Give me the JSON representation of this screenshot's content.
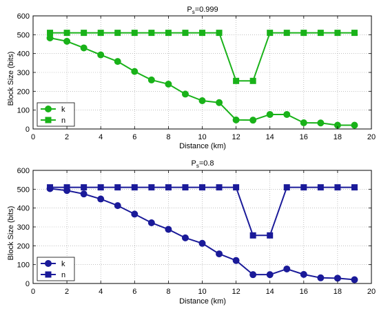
{
  "chart_data": [
    {
      "type": "line",
      "title_main": "P",
      "title_sub": "s",
      "title_rest": "=0.999",
      "xlabel": "Distance (km)",
      "ylabel": "Block Size (bits)",
      "xlim": [
        0,
        20
      ],
      "ylim": [
        0,
        600
      ],
      "xticks": [
        "0",
        "2",
        "4",
        "6",
        "8",
        "10",
        "12",
        "14",
        "16",
        "18",
        "20"
      ],
      "yticks": [
        "0",
        "100",
        "200",
        "300",
        "400",
        "500",
        "600"
      ],
      "grid": true,
      "legend_placement": "bottom-left",
      "color": "#19b219",
      "x": [
        1,
        2,
        3,
        4,
        5,
        6,
        7,
        8,
        9,
        10,
        11,
        12,
        13,
        14,
        15,
        16,
        17,
        18,
        19
      ],
      "series": [
        {
          "name": "k",
          "marker": "circle",
          "values": [
            483,
            465,
            430,
            393,
            358,
            305,
            260,
            238,
            185,
            150,
            140,
            48,
            47,
            77,
            77,
            33,
            32,
            20,
            20
          ]
        },
        {
          "name": "n",
          "marker": "square",
          "values": [
            510,
            510,
            510,
            510,
            510,
            510,
            510,
            510,
            510,
            510,
            510,
            255,
            255,
            510,
            510,
            510,
            510,
            510,
            510
          ]
        }
      ]
    },
    {
      "type": "line",
      "title_main": "P",
      "title_sub": "s",
      "title_rest": "=0.8",
      "xlabel": "Distance (km)",
      "ylabel": "Block Size (bits)",
      "xlim": [
        0,
        20
      ],
      "ylim": [
        0,
        600
      ],
      "xticks": [
        "0",
        "2",
        "4",
        "6",
        "8",
        "10",
        "12",
        "14",
        "16",
        "18",
        "20"
      ],
      "yticks": [
        "0",
        "100",
        "200",
        "300",
        "400",
        "500",
        "600"
      ],
      "grid": true,
      "legend_placement": "bottom-left",
      "color": "#1a1a99",
      "x": [
        1,
        2,
        3,
        4,
        5,
        6,
        7,
        8,
        9,
        10,
        11,
        12,
        13,
        14,
        15,
        16,
        17,
        18,
        19
      ],
      "series": [
        {
          "name": "k",
          "marker": "circle",
          "values": [
            503,
            493,
            475,
            448,
            413,
            368,
            322,
            287,
            242,
            213,
            157,
            122,
            47,
            47,
            77,
            48,
            30,
            28,
            20
          ]
        },
        {
          "name": "n",
          "marker": "square",
          "values": [
            510,
            510,
            510,
            510,
            510,
            510,
            510,
            510,
            510,
            510,
            510,
            510,
            255,
            255,
            510,
            510,
            510,
            510,
            510
          ]
        }
      ]
    }
  ]
}
